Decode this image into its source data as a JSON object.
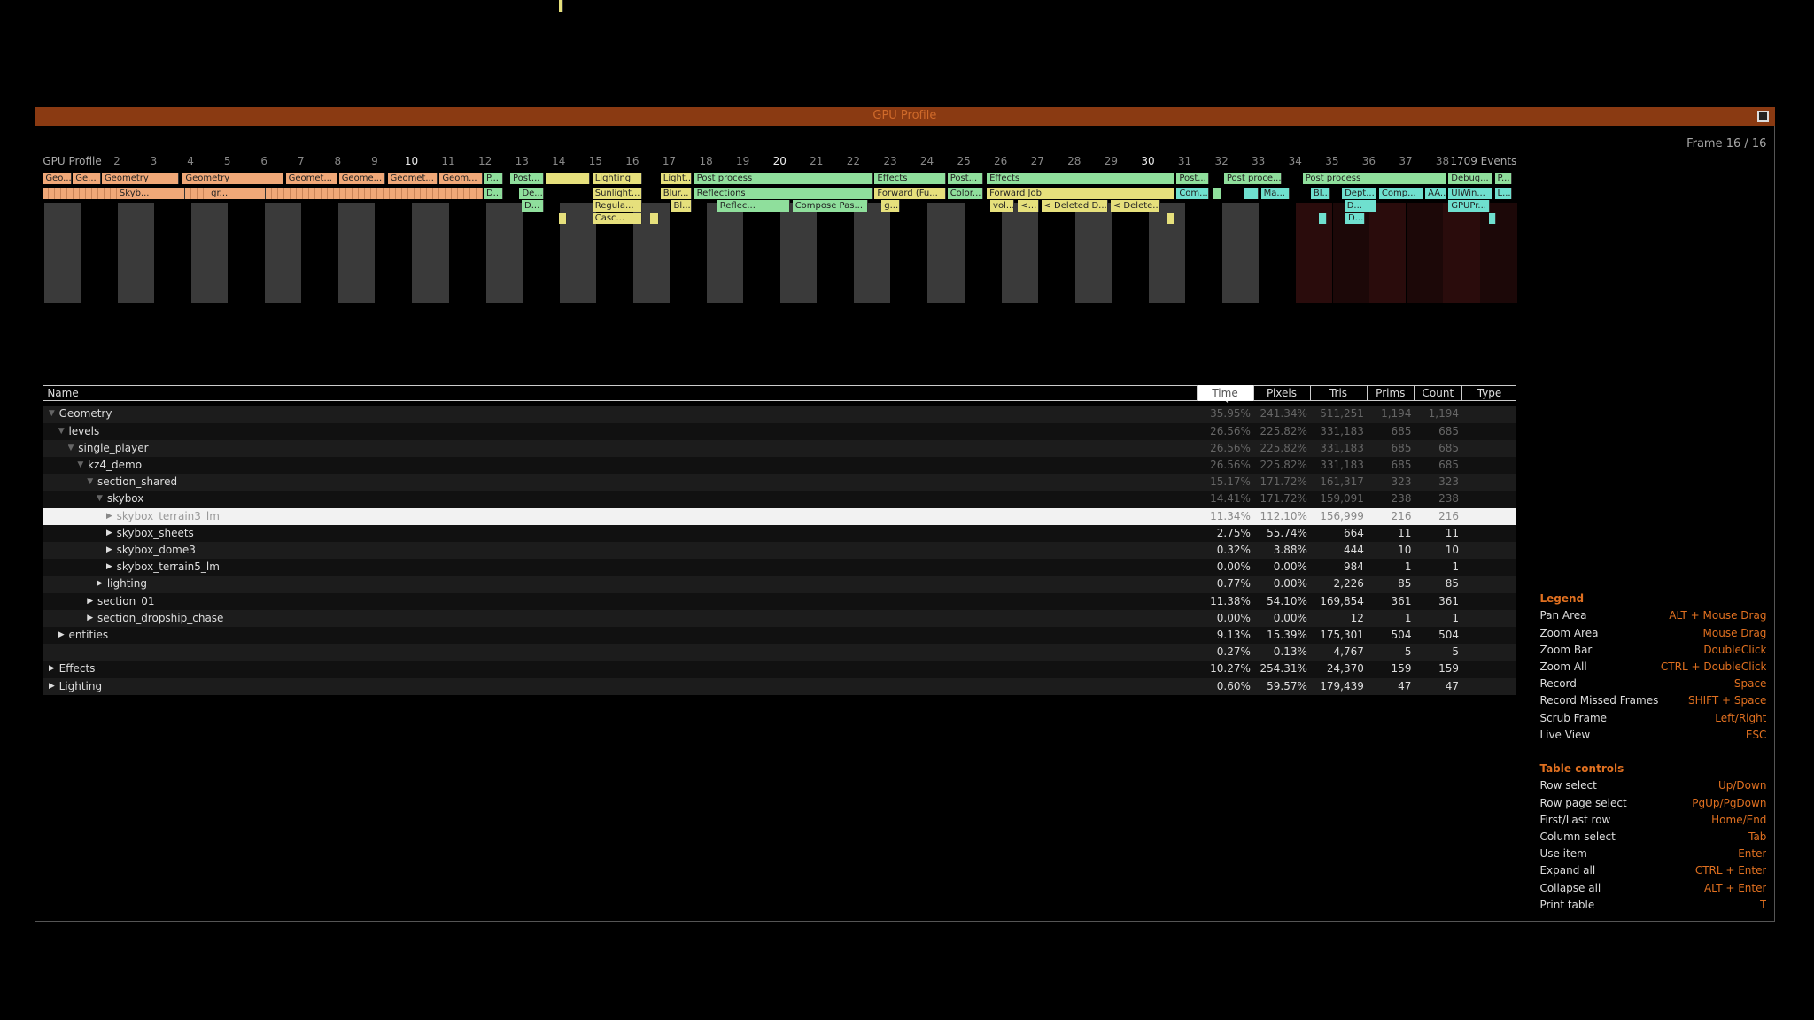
{
  "window": {
    "title": "GPU Profile",
    "frame_label": "Frame 16 / 16"
  },
  "timeline": {
    "label": "GPU Profile",
    "frames": [
      2,
      3,
      4,
      5,
      6,
      7,
      8,
      9,
      10,
      11,
      12,
      13,
      14,
      15,
      16,
      17,
      18,
      19,
      20,
      21,
      22,
      23,
      24,
      25,
      26,
      27,
      28,
      29,
      30,
      31,
      32,
      33,
      34,
      35,
      36,
      37,
      38
    ],
    "events": "1709 Events",
    "blocks": [
      [
        "Geo...",
        "Ge...",
        "Geometry",
        "Geometry",
        "Geomet...",
        "Geome...",
        "Geomet...",
        "Geom...",
        "P...",
        "Post...",
        "Lighting",
        "Light...",
        "Post process",
        "Effects",
        "Post...",
        "Effects",
        "Post...",
        "Post proce...",
        "Post process",
        "Debug...",
        "P..."
      ],
      [
        "Skyb...",
        "gr...",
        "D...",
        "De...",
        "Sunlight...",
        "Blur...",
        "Reflections",
        "Forward (Fu...",
        "Color...",
        "Forward Job",
        "Com...",
        "Ma...",
        "Bl...",
        "Dept...",
        "Comp...",
        "AA...",
        "UIWin...",
        "L..."
      ],
      [
        "D...",
        "Regula...",
        "Bl...",
        "Reflec...",
        "Compose Pas...",
        "g...",
        "vol...",
        "<...",
        "< Deleted D...",
        "< Delete...",
        "D...",
        "GPUPr..."
      ],
      [
        "Casc...",
        "D..."
      ]
    ]
  },
  "table": {
    "columns": [
      "Name",
      "Time",
      "Pixels",
      "Tris",
      "Prims",
      "Count",
      "Type"
    ],
    "rows": [
      [
        "Geometry",
        "35.95%",
        "241.34%",
        "511,251",
        "1,194",
        "1,194"
      ],
      [
        "levels",
        "26.56%",
        "225.82%",
        "331,183",
        "685",
        "685"
      ],
      [
        "single_player",
        "26.56%",
        "225.82%",
        "331,183",
        "685",
        "685"
      ],
      [
        "kz4_demo",
        "26.56%",
        "225.82%",
        "331,183",
        "685",
        "685"
      ],
      [
        "section_shared",
        "15.17%",
        "171.72%",
        "161,317",
        "323",
        "323"
      ],
      [
        "skybox",
        "14.41%",
        "171.72%",
        "159,091",
        "238",
        "238"
      ],
      [
        "skybox_terrain3_lm",
        "11.34%",
        "112.10%",
        "156,999",
        "216",
        "216"
      ],
      [
        "skybox_sheets",
        "2.75%",
        "55.74%",
        "664",
        "11",
        "11"
      ],
      [
        "skybox_dome3",
        "0.32%",
        "3.88%",
        "444",
        "10",
        "10"
      ],
      [
        "skybox_terrain5_lm",
        "0.00%",
        "0.00%",
        "984",
        "1",
        "1"
      ],
      [
        "lighting",
        "0.77%",
        "0.00%",
        "2,226",
        "85",
        "85"
      ],
      [
        "section_01",
        "11.38%",
        "54.10%",
        "169,854",
        "361",
        "361"
      ],
      [
        "section_dropship_chase",
        "0.00%",
        "0.00%",
        "12",
        "1",
        "1"
      ],
      [
        "entities",
        "9.13%",
        "15.39%",
        "175,301",
        "504",
        "504"
      ],
      [
        null,
        "0.27%",
        "0.13%",
        "4,767",
        "5",
        "5"
      ],
      [
        "Effects",
        "10.27%",
        "254.31%",
        "24,370",
        "159",
        "159"
      ],
      [
        "Lighting",
        "0.60%",
        "59.57%",
        "179,439",
        "47",
        "47"
      ]
    ]
  },
  "legend": {
    "title": "Legend",
    "items": [
      [
        "Pan Area",
        "ALT + Mouse Drag"
      ],
      [
        "Zoom Area",
        "Mouse Drag"
      ],
      [
        "Zoom Bar",
        "DoubleClick"
      ],
      [
        "Zoom All",
        "CTRL + DoubleClick"
      ],
      [
        "Record",
        "Space"
      ],
      [
        "Record Missed Frames",
        "SHIFT + Space"
      ],
      [
        "Scrub Frame",
        "Left/Right"
      ],
      [
        "Live View",
        "ESC"
      ]
    ]
  },
  "table_controls": {
    "title": "Table controls",
    "items": [
      [
        "Row select",
        "Up/Down"
      ],
      [
        "Row page select",
        "PgUp/PgDown"
      ],
      [
        "First/Last row",
        "Home/End"
      ],
      [
        "Column select",
        "Tab"
      ],
      [
        "Use item",
        "Enter"
      ],
      [
        "Expand all",
        "CTRL + Enter"
      ],
      [
        "Collapse all",
        "ALT + Enter"
      ],
      [
        "Print table",
        "T"
      ]
    ]
  }
}
